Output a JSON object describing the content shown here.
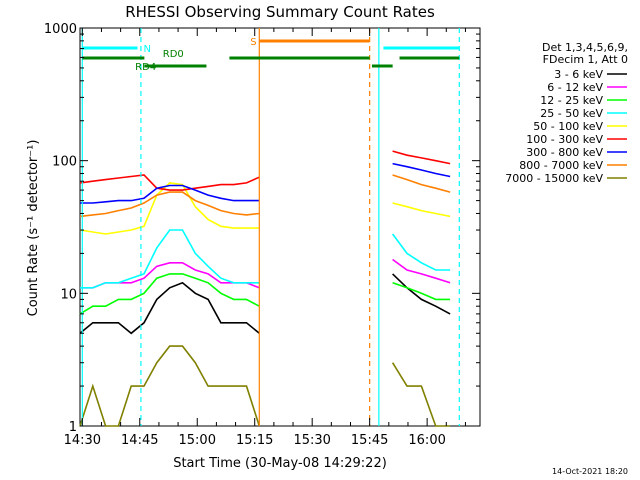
{
  "chart_data": {
    "type": "line",
    "title": "RHESSI Observing Summary Count Rates",
    "xlabel": "Start Time (30-May-08 14:29:22)",
    "ylabel": "Count Rate (s⁻¹ detector⁻¹)",
    "yscale": "log",
    "ylim": [
      1,
      1000
    ],
    "xlim": [
      14.49,
      16.23
    ],
    "y_ticks": [
      {
        "v": 1,
        "label": "1"
      },
      {
        "v": 10,
        "label": "10"
      },
      {
        "v": 100,
        "label": "100"
      },
      {
        "v": 1000,
        "label": "1000"
      }
    ],
    "x_ticks": [
      {
        "v": 14.5,
        "label": "14:30"
      },
      {
        "v": 14.75,
        "label": "14:45"
      },
      {
        "v": 15.0,
        "label": "15:00"
      },
      {
        "v": 15.25,
        "label": "15:15"
      },
      {
        "v": 15.5,
        "label": "15:30"
      },
      {
        "v": 15.75,
        "label": "15:45"
      },
      {
        "v": 16.0,
        "label": "16:00"
      }
    ],
    "legend_header": [
      "Det 1,3,4,5,6,9,",
      "FDecim 1, Att 0"
    ],
    "series": [
      {
        "name": "3 - 6 keV",
        "color": "#000000",
        "values": [
          5,
          6,
          6,
          6,
          5,
          6,
          9,
          11,
          12,
          10,
          9,
          6,
          6,
          6,
          5
        ],
        "post": [
          14,
          11,
          9,
          8,
          7
        ]
      },
      {
        "name": "6 - 12 keV",
        "color": "#ff00ff",
        "values": [
          11,
          11,
          12,
          12,
          12,
          13,
          16,
          17,
          17,
          15,
          14,
          12,
          12,
          12,
          11
        ],
        "post": [
          18,
          15,
          14,
          13,
          12
        ]
      },
      {
        "name": "12 - 25 keV",
        "color": "#00ff00",
        "values": [
          7,
          8,
          8,
          9,
          9,
          10,
          13,
          14,
          14,
          13,
          12,
          10,
          9,
          9,
          8
        ],
        "post": [
          12,
          11,
          10,
          9,
          9
        ]
      },
      {
        "name": "25 - 50 keV",
        "color": "#00ffff",
        "values": [
          11,
          11,
          12,
          12,
          13,
          14,
          22,
          30,
          30,
          20,
          16,
          13,
          12,
          12,
          12
        ],
        "post": [
          28,
          20,
          17,
          15,
          15
        ]
      },
      {
        "name": "50 - 100 keV",
        "color": "#ffff00",
        "values": [
          30,
          29,
          28,
          29,
          30,
          32,
          55,
          68,
          66,
          45,
          36,
          32,
          31,
          31,
          31
        ],
        "post": [
          48,
          45,
          42,
          40,
          38
        ]
      },
      {
        "name": "100 - 300 keV",
        "color": "#ff0000",
        "values": [
          68,
          70,
          72,
          74,
          76,
          78,
          62,
          60,
          60,
          62,
          64,
          66,
          66,
          68,
          75
        ],
        "post": [
          118,
          110,
          105,
          100,
          95
        ]
      },
      {
        "name": "300 - 800 keV",
        "color": "#0000ff",
        "values": [
          48,
          48,
          49,
          50,
          50,
          52,
          62,
          65,
          65,
          60,
          55,
          52,
          50,
          50,
          50
        ],
        "post": [
          95,
          90,
          85,
          80,
          76
        ]
      },
      {
        "name": "800 - 7000 keV",
        "color": "#ff8000",
        "values": [
          38,
          39,
          40,
          42,
          44,
          48,
          55,
          58,
          58,
          50,
          46,
          42,
          40,
          39,
          40
        ],
        "post": [
          78,
          72,
          66,
          62,
          58
        ]
      },
      {
        "name": "7000 - 15000 keV",
        "color": "#808000",
        "values": [
          1,
          2,
          1,
          1,
          2,
          2,
          3,
          4,
          4,
          3,
          2,
          2,
          2,
          2,
          1
        ],
        "post": [
          3,
          2,
          2,
          1,
          1
        ]
      }
    ],
    "pre_range": [
      14.49,
      15.27
    ],
    "post_range": [
      15.85,
      16.1
    ],
    "flags": [
      {
        "label": "N",
        "color": "#00ffff",
        "start": 14.5,
        "end": 14.74,
        "gap_end": 16.14
      },
      {
        "label": "S",
        "color": "#ff8000",
        "start": 15.27,
        "end": 15.75
      },
      {
        "label": "RD0",
        "color": "#008000"
      },
      {
        "label": "RD4",
        "color": "#008000"
      }
    ],
    "vlines": [
      {
        "x": 14.5,
        "color": "#00ffff",
        "style": "solid"
      },
      {
        "x": 14.755,
        "color": "#00ffff",
        "style": "dash"
      },
      {
        "x": 15.27,
        "color": "#ff8000",
        "style": "solid"
      },
      {
        "x": 15.75,
        "color": "#ff8000",
        "style": "dash"
      },
      {
        "x": 15.79,
        "color": "#00ffff",
        "style": "solid"
      },
      {
        "x": 16.14,
        "color": "#00ffff",
        "style": "dash"
      }
    ]
  },
  "footer": {
    "timestamp": "14-Oct-2021 18:20"
  }
}
